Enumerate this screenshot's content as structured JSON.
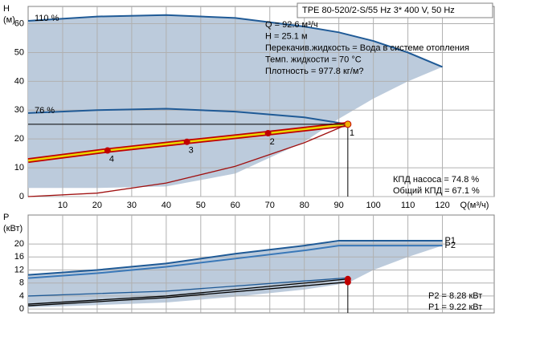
{
  "chart_data": [
    {
      "type": "line",
      "title": "TPE 80-520/2-S/55 Hz   3* 400 V, 50 Hz",
      "x_label": "Q(м³/ч)",
      "y_label": [
        "H",
        "(м)"
      ],
      "xlim": [
        0,
        135
      ],
      "ylim": [
        0,
        66
      ],
      "xticks": [
        10,
        20,
        30,
        40,
        50,
        60,
        70,
        80,
        90,
        100,
        110,
        120
      ],
      "yticks": [
        0,
        10,
        20,
        30,
        40,
        50,
        60
      ],
      "grid": true,
      "envelope": {
        "color": "#bccbdc",
        "x": [
          0,
          20,
          40,
          60,
          80,
          90,
          100,
          110,
          120
        ],
        "upper": [
          61,
          62.5,
          63,
          62,
          59,
          57,
          54,
          50,
          45
        ],
        "lower": [
          3,
          3,
          3.5,
          8,
          19,
          27,
          34,
          40,
          45
        ]
      },
      "series": [
        {
          "name": "110 %",
          "color": "#1f5a96",
          "x": [
            0,
            20,
            40,
            60,
            80,
            90,
            100,
            110,
            120
          ],
          "values": [
            61,
            62.5,
            63,
            62,
            59,
            57,
            54,
            50,
            45
          ]
        },
        {
          "name": "76 %",
          "color": "#1f5a96",
          "x": [
            0,
            20,
            40,
            60,
            80,
            92.6
          ],
          "values": [
            29,
            30,
            30.5,
            29.5,
            27.5,
            25.1
          ]
        },
        {
          "color": "#e8d800",
          "edge_color": "#c00000",
          "x": [
            0,
            23,
            46,
            69.5,
            92.6
          ],
          "values": [
            12.5,
            16,
            19,
            22,
            25.1
          ]
        },
        {
          "color": "#a01010",
          "x": [
            0,
            20,
            40,
            60,
            80,
            92.6
          ],
          "values": [
            0,
            1.2,
            4.7,
            10.5,
            18.7,
            25.1
          ]
        }
      ],
      "points": {
        "labels": [
          "1",
          "2",
          "3",
          "4"
        ],
        "x": [
          92.6,
          69.5,
          46,
          23
        ],
        "values": [
          25.1,
          22,
          19,
          16
        ],
        "color": "#c00000"
      },
      "info": [
        "Q = 92.6 м³/ч",
        "H = 25.1 м",
        "Перекачив.жидкость = Вода в системе отопления",
        "Темп. жидкости = 70 °C",
        "Плотность = 977.8 кг/м?"
      ],
      "efficiency": [
        "КПД насоса = 74.8 %",
        "Общий КПД = 67.1 %"
      ]
    },
    {
      "type": "line",
      "y_label": [
        "P",
        "(кВт)"
      ],
      "xlim": [
        0,
        135
      ],
      "ylim": [
        -1.2,
        28.9
      ],
      "yticks": [
        0,
        4,
        8,
        12,
        16,
        20
      ],
      "grid": true,
      "envelope": {
        "color": "#bccbdc",
        "x": [
          0,
          20,
          40,
          60,
          80,
          92.6,
          100,
          110,
          120
        ],
        "upper": [
          10.5,
          12,
          14,
          17,
          19.5,
          21,
          21,
          21,
          21
        ],
        "lower": [
          0.5,
          1.2,
          2,
          3.8,
          6,
          8,
          12,
          16,
          19.5
        ]
      },
      "series": [
        {
          "name": "P1",
          "color": "#1f5a96",
          "x": [
            0,
            20,
            40,
            60,
            80,
            90,
            120
          ],
          "values": [
            10.5,
            12,
            14,
            17,
            19.5,
            21,
            21
          ]
        },
        {
          "name": "P2",
          "color": "#3a78b8",
          "x": [
            0,
            20,
            40,
            60,
            80,
            90,
            120
          ],
          "values": [
            9.5,
            11,
            13,
            15.5,
            18,
            19.5,
            19.5
          ]
        },
        {
          "color": "#1f5a96",
          "x": [
            0,
            40,
            92.6
          ],
          "values": [
            4,
            5.5,
            9.6
          ]
        },
        {
          "color": "#000000",
          "x": [
            0,
            40,
            92.6
          ],
          "values": [
            1.5,
            4,
            9.22
          ]
        },
        {
          "color": "#000000",
          "x": [
            0,
            40,
            92.6
          ],
          "values": [
            1,
            3.5,
            8.28
          ]
        }
      ],
      "points": {
        "x": [
          92.6,
          92.6
        ],
        "values": [
          9.22,
          8.28
        ],
        "color": "#c00000"
      },
      "info": [
        "P2 = 8.28 кВт",
        "P1 = 9.22 кВт"
      ]
    }
  ]
}
